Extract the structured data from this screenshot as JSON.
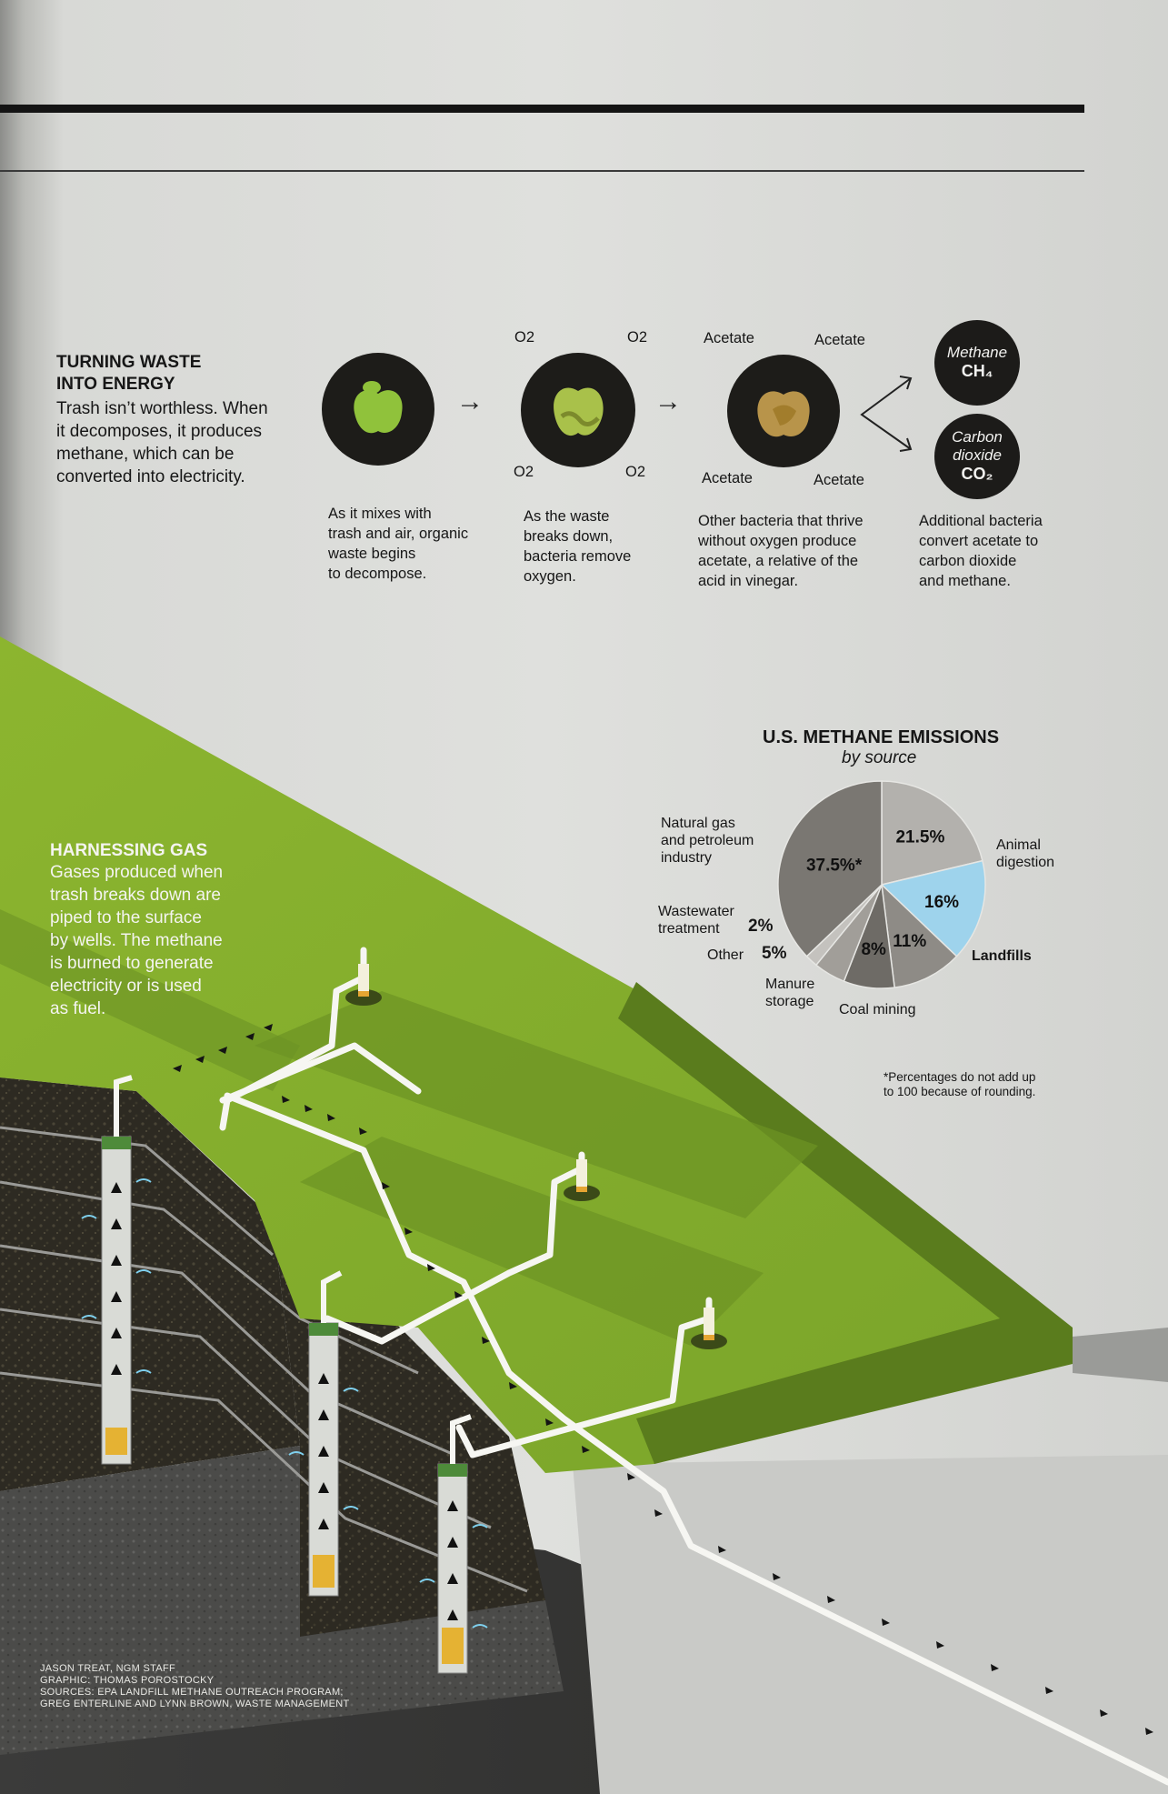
{
  "intro": {
    "heading": "TURNING WASTE INTO ENERGY",
    "heading_line1": "TURNING WASTE",
    "heading_line2": "INTO ENERGY",
    "body_lines": [
      "Trash isn’t worthless. When",
      "it decomposes, it produces",
      "methane, which can be",
      "converted into electricity."
    ]
  },
  "steps": [
    {
      "lines": [
        "As it mixes with",
        "trash and air, organic",
        "waste begins",
        "to decompose."
      ]
    },
    {
      "labels": [
        "O2",
        "O2",
        "O2",
        "O2"
      ],
      "lines": [
        "As the waste",
        "breaks down,",
        "bacteria remove",
        "oxygen."
      ]
    },
    {
      "labels": [
        "Acetate",
        "Acetate",
        "Acetate",
        "Acetate"
      ],
      "lines": [
        "Other bacteria that thrive",
        "without oxygen produce",
        "acetate, a relative of the",
        "acid in vinegar."
      ]
    },
    {
      "lines": [
        "Additional bacteria",
        "convert acetate to",
        "carbon dioxide",
        "and methane."
      ]
    }
  ],
  "gases": [
    {
      "name": "Methane",
      "formula": "CH₄"
    },
    {
      "name_lines": [
        "Carbon",
        "dioxide"
      ],
      "formula": "CO₂"
    }
  ],
  "harnessing": {
    "heading": "HARNESSING GAS",
    "body_lines": [
      "Gases produced when",
      "trash breaks down are",
      "piped to the surface",
      "by wells. The methane",
      "is burned to generate",
      "electricity or is used",
      "as fuel."
    ]
  },
  "chart_data": {
    "type": "pie",
    "title": "U.S. METHANE EMISSIONS",
    "subtitle": "by source",
    "slices": [
      {
        "label": "Natural gas and petroleum industry",
        "value": 37.5,
        "value_label": "37.5%*",
        "color": "#7a7772"
      },
      {
        "label": "Animal digestion",
        "value": 21.5,
        "value_label": "21.5%",
        "color": "#b3b1ad"
      },
      {
        "label": "Landfills",
        "value": 16,
        "value_label": "16%",
        "color": "#9ed3ec"
      },
      {
        "label": "Coal mining",
        "value": 11,
        "value_label": "11%",
        "color": "#8e8b86"
      },
      {
        "label": "Manure storage",
        "value": 8,
        "value_label": "8%",
        "color": "#6e6b66"
      },
      {
        "label": "Other",
        "value": 5,
        "value_label": "5%",
        "color": "#a19e99"
      },
      {
        "label": "Wastewater treatment",
        "value": 2,
        "value_label": "2%",
        "color": "#c4c2be"
      }
    ],
    "footnote_lines": [
      "*Percentages do not add up",
      "to 100 because of rounding."
    ]
  },
  "pie_labels": {
    "natural_gas": [
      "Natural gas",
      "and petroleum",
      "industry"
    ],
    "animal": [
      "Animal",
      "digestion"
    ],
    "wastewater": [
      "Wastewater",
      "treatment"
    ],
    "other": "Other",
    "manure": [
      "Manure",
      "storage"
    ],
    "coal": "Coal mining",
    "landfills": "Landfills"
  },
  "credits": [
    "JASON TREAT, NGM STAFF",
    "GRAPHIC: THOMAS POROSTOCKY",
    "SOURCES: EPA LANDFILL METHANE OUTREACH PROGRAM;",
    "GREG ENTERLINE AND LYNN BROWN, WASTE MANAGEMENT"
  ],
  "colors": {
    "grass": "#7fa92c",
    "grass_dark": "#5c7d1e",
    "landfills": "#9ed3ec",
    "circle": "#1d1c19"
  }
}
